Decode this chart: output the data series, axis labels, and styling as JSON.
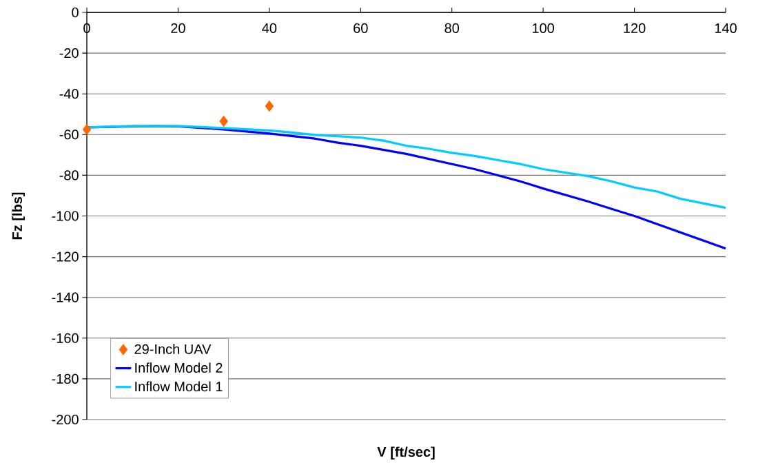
{
  "chart_data": {
    "type": "line",
    "xlabel": "V [ft/sec]",
    "ylabel": "Fz [lbs]",
    "xlim": [
      0,
      140
    ],
    "ylim": [
      -200,
      0
    ],
    "xticks": [
      0,
      20,
      40,
      60,
      80,
      100,
      120,
      140
    ],
    "yticks": [
      -200,
      -180,
      -160,
      -140,
      -120,
      -100,
      -80,
      -60,
      -40,
      -20,
      0
    ],
    "grid": "y",
    "legend": "bottom left",
    "series": [
      {
        "name": "29-Inch UAV",
        "type": "scatter",
        "marker": "diamond",
        "color": "#ff6600",
        "x": [
          0,
          30,
          40
        ],
        "values": [
          -57.5,
          -53.5,
          -46
        ]
      },
      {
        "name": "Inflow Model 2",
        "color": "#0000ff",
        "x": [
          0,
          10,
          15,
          20,
          30,
          40,
          50,
          55,
          60,
          70,
          75,
          80,
          85,
          90,
          95,
          100,
          110,
          115,
          120,
          130,
          140
        ],
        "values": [
          -56.5,
          -56,
          -55.8,
          -56,
          -57.5,
          -59.5,
          -62,
          -64,
          -65.5,
          -69.5,
          -72,
          -74.5,
          -77,
          -80,
          -83,
          -86.5,
          -93,
          -96.5,
          -100,
          -108,
          -116
        ]
      },
      {
        "name": "Inflow Model 1",
        "color": "#00ccff",
        "x": [
          0,
          10,
          20,
          30,
          40,
          45,
          50,
          60,
          65,
          70,
          75,
          80,
          85,
          90,
          95,
          100,
          110,
          115,
          120,
          125,
          130,
          140
        ],
        "values": [
          -56.5,
          -55.8,
          -55.8,
          -56.8,
          -58,
          -59,
          -60.2,
          -61.5,
          -63,
          -65.5,
          -67,
          -69,
          -70.5,
          -72.5,
          -74.5,
          -77,
          -80.5,
          -83,
          -86,
          -88,
          -91.5,
          -96
        ]
      }
    ]
  }
}
